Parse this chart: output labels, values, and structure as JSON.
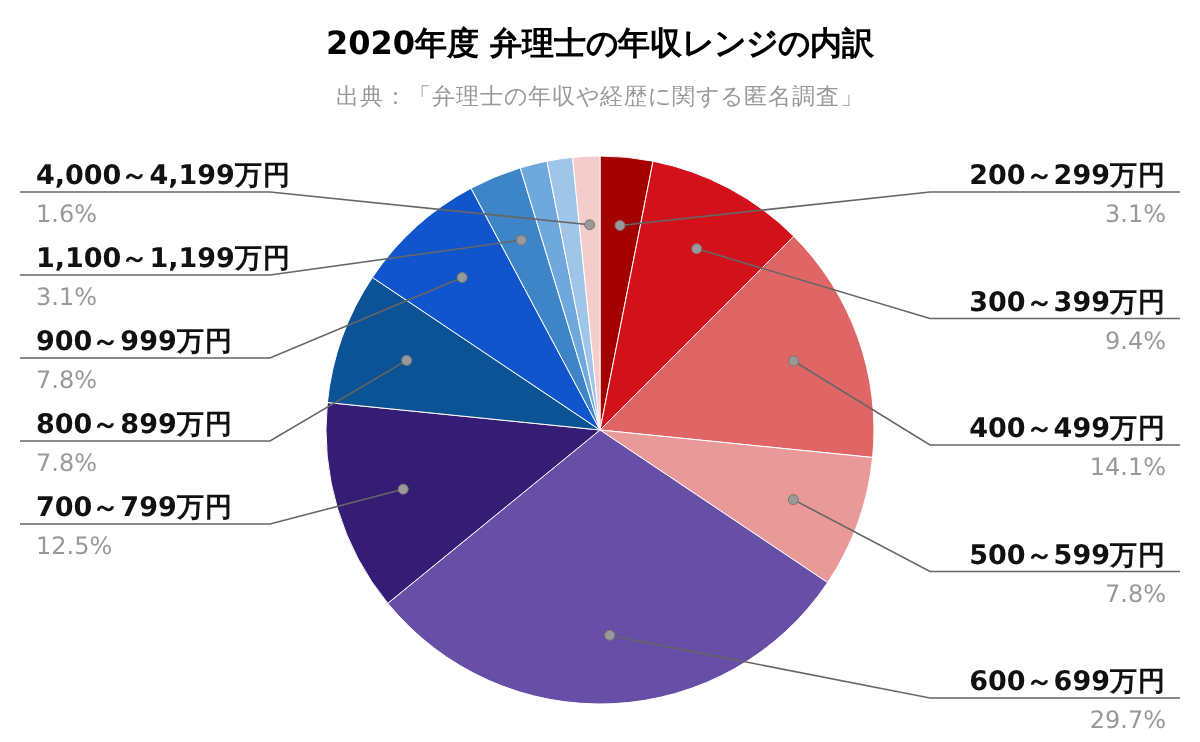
{
  "chart_data": {
    "type": "pie",
    "title": "2020年度 弁理士の年収レンジの内訳",
    "subtitle": "出典：「弁理士の年収や経歴に関する匿名調査」",
    "categories": [
      "200～299万円",
      "300～399万円",
      "400～499万円",
      "500～599万円",
      "600～699万円",
      "700～799万円",
      "800～899万円",
      "900～999万円",
      "1,100～1,199万円",
      null,
      null,
      "4,000～4,199万円"
    ],
    "values": [
      3.1,
      9.4,
      14.1,
      7.8,
      29.7,
      12.5,
      7.8,
      7.8,
      3.1,
      1.6,
      1.5,
      1.6
    ],
    "value_labels": [
      "3.1%",
      "9.4%",
      "14.1%",
      "7.8%",
      "29.7%",
      "12.5%",
      "7.8%",
      "7.8%",
      "3.1%",
      null,
      null,
      "1.6%"
    ],
    "colors": [
      "#a30000",
      "#d3111b",
      "#e06666",
      "#ea9999",
      "#674ea7",
      "#351c75",
      "#0b5394",
      "#1155cc",
      "#3d85c6",
      "#6fa8dc",
      "#9fc5e8",
      "#f4cccc"
    ]
  }
}
